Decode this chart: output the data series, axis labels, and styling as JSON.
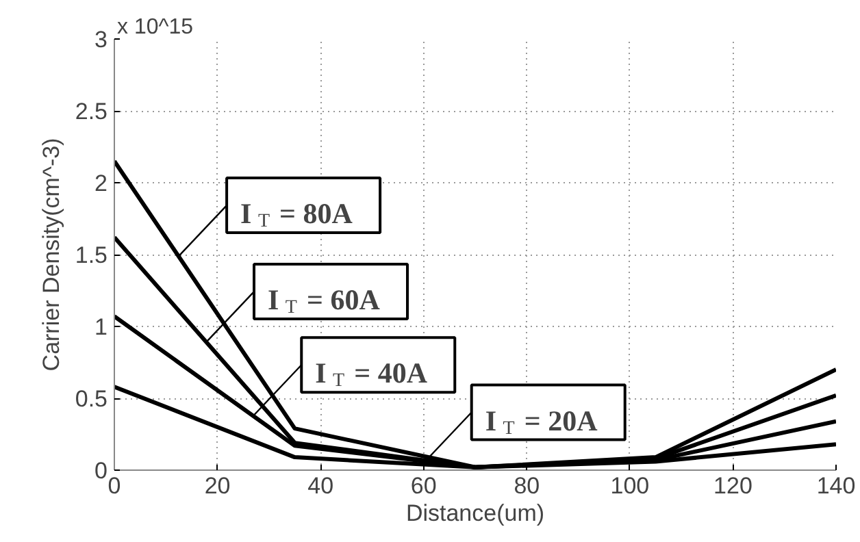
{
  "chart_data": {
    "type": "line",
    "xlabel": "Distance(um)",
    "ylabel": "Carrier Density(cm^-3)",
    "x": [
      0,
      35,
      70,
      105,
      140
    ],
    "series": [
      {
        "color": "#000000",
        "values": [
          2.15,
          0.29,
          0.02,
          0.09,
          0.7
        ]
      },
      {
        "color": "#000000",
        "values": [
          1.62,
          0.19,
          0.02,
          0.08,
          0.52
        ]
      },
      {
        "color": "#000000",
        "values": [
          1.07,
          0.17,
          0.02,
          0.07,
          0.34
        ]
      },
      {
        "color": "#000000",
        "values": [
          0.58,
          0.09,
          0.02,
          0.06,
          0.18
        ]
      }
    ],
    "xlim": [
      0,
      140
    ],
    "ylim": [
      0,
      3
    ],
    "xticks": [
      0,
      20,
      40,
      60,
      80,
      100,
      120,
      140
    ],
    "yticks": [
      0,
      0.5,
      1,
      1.5,
      2,
      2.5,
      3
    ],
    "grid": true,
    "marker": "none",
    "line_style": "solid",
    "annotations": [
      "x 10^15",
      {
        "text": "I$_{T}$ = 80A",
        "x": 12.5,
        "y": 1.49
      },
      {
        "text": "I$_{T}$ = 60A",
        "x": 17.8,
        "y": 0.89
      },
      {
        "text": "I$_{T}$ = 40A",
        "x": 27,
        "y": 0.38
      },
      {
        "text": "I$_{T}$ = 20A",
        "x": 60,
        "y": 0.05
      }
    ]
  }
}
